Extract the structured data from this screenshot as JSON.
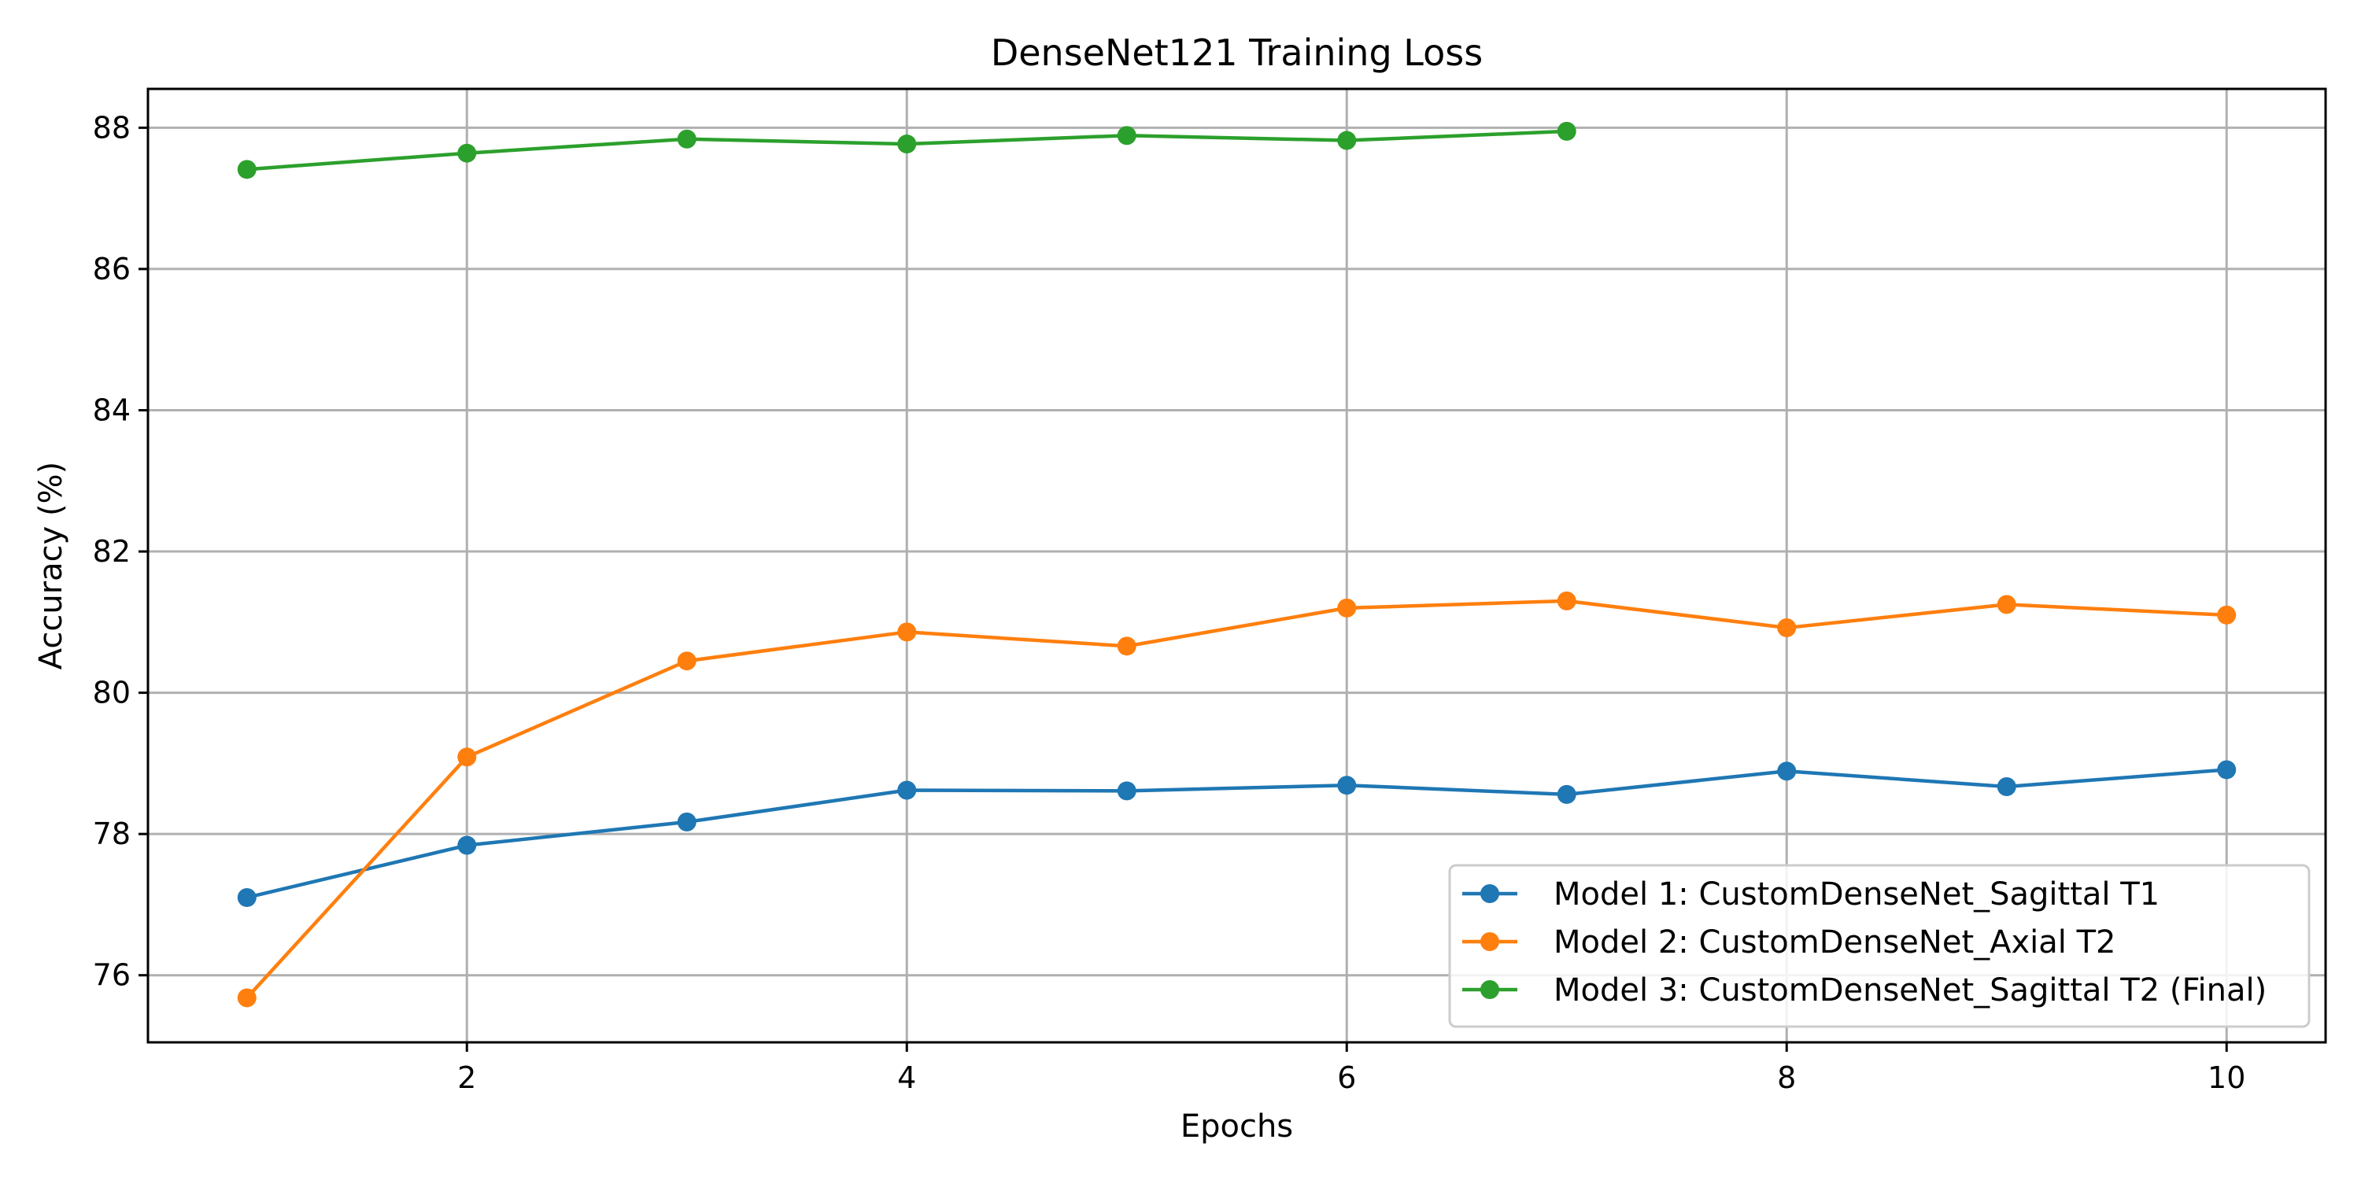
{
  "chart_data": {
    "type": "line",
    "title": "DenseNet121 Training Loss",
    "xlabel": "Epochs",
    "ylabel": "Accuracy (%)",
    "xlim": [
      0.55,
      10.45
    ],
    "ylim": [
      75.05,
      88.55
    ],
    "xticks": [
      2,
      4,
      6,
      8,
      10
    ],
    "yticks": [
      76,
      78,
      80,
      82,
      84,
      86,
      88
    ],
    "grid": true,
    "legend_position": "lower-right",
    "series": [
      {
        "name": "Model 1: CustomDenseNet_Sagittal T1",
        "color": "#1f77b4",
        "x": [
          1,
          2,
          3,
          4,
          5,
          6,
          7,
          8,
          9,
          10
        ],
        "y": [
          77.1,
          77.84,
          78.17,
          78.62,
          78.61,
          78.69,
          78.56,
          78.89,
          78.67,
          78.91
        ]
      },
      {
        "name": "Model 2: CustomDenseNet_Axial T2",
        "color": "#ff7f0e",
        "x": [
          1,
          2,
          3,
          4,
          5,
          6,
          7,
          8,
          9,
          10
        ],
        "y": [
          75.68,
          79.09,
          80.45,
          80.86,
          80.66,
          81.2,
          81.3,
          80.92,
          81.25,
          81.1
        ]
      },
      {
        "name": "Model 3: CustomDenseNet_Sagittal T2 (Final)",
        "color": "#2ca02c",
        "x": [
          1,
          2,
          3,
          4,
          5,
          6,
          7
        ],
        "y": [
          87.41,
          87.64,
          87.84,
          87.77,
          87.89,
          87.82,
          87.95
        ]
      }
    ]
  }
}
